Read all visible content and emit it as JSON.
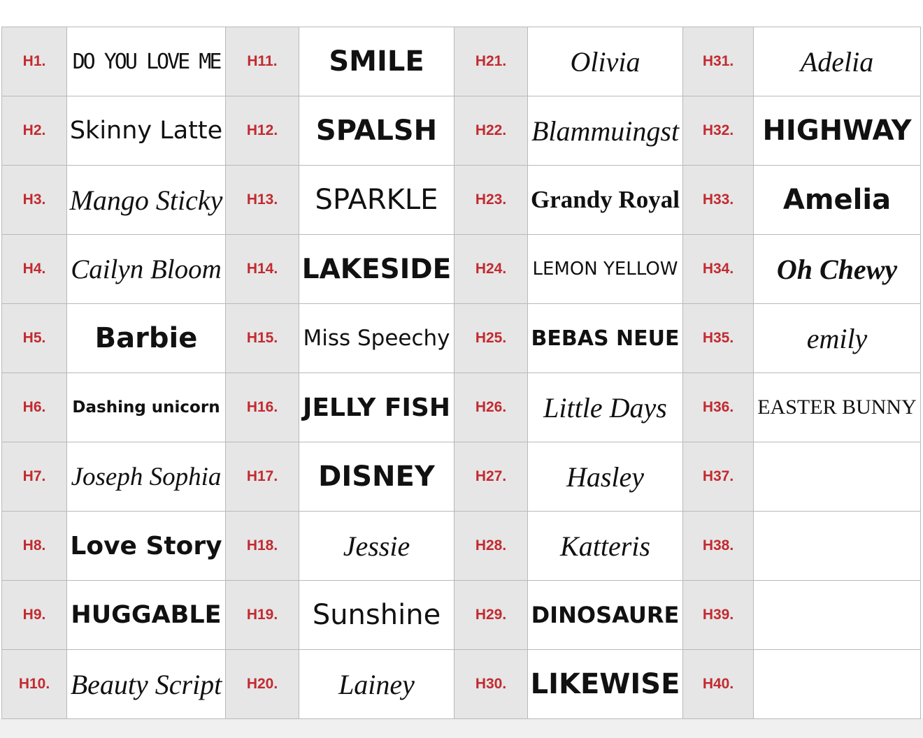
{
  "table": {
    "groups": [
      {
        "items": [
          {
            "code": "H1.",
            "sample": "DO YOU LOVE ME"
          },
          {
            "code": "H2.",
            "sample": "Skinny Latte"
          },
          {
            "code": "H3.",
            "sample": "Mango Sticky"
          },
          {
            "code": "H4.",
            "sample": "Cailyn Bloom"
          },
          {
            "code": "H5.",
            "sample": "Barbie"
          },
          {
            "code": "H6.",
            "sample": "Dashing unicorn"
          },
          {
            "code": "H7.",
            "sample": "Joseph Sophia"
          },
          {
            "code": "H8.",
            "sample": "Love Story"
          },
          {
            "code": "H9.",
            "sample": "HUGGABLE"
          },
          {
            "code": "H10.",
            "sample": "Beauty Script"
          }
        ]
      },
      {
        "items": [
          {
            "code": "H11.",
            "sample": "SMILE"
          },
          {
            "code": "H12.",
            "sample": "SPALSH"
          },
          {
            "code": "H13.",
            "sample": "SPARKLE"
          },
          {
            "code": "H14.",
            "sample": "LAKESIDE"
          },
          {
            "code": "H15.",
            "sample": "Miss Speechy"
          },
          {
            "code": "H16.",
            "sample": "JELLY FISH"
          },
          {
            "code": "H17.",
            "sample": "DISNEY"
          },
          {
            "code": "H18.",
            "sample": "Jessie"
          },
          {
            "code": "H19.",
            "sample": "Sunshine"
          },
          {
            "code": "H20.",
            "sample": "Lainey"
          }
        ]
      },
      {
        "items": [
          {
            "code": "H21.",
            "sample": "Olivia"
          },
          {
            "code": "H22.",
            "sample": "Blammuingst"
          },
          {
            "code": "H23.",
            "sample": "Grandy Royal"
          },
          {
            "code": "H24.",
            "sample": "LEMON YELLOW"
          },
          {
            "code": "H25.",
            "sample": "BEBAS NEUE"
          },
          {
            "code": "H26.",
            "sample": "Little Days"
          },
          {
            "code": "H27.",
            "sample": "Hasley"
          },
          {
            "code": "H28.",
            "sample": "Katteris"
          },
          {
            "code": "H29.",
            "sample": "DINOSAURE"
          },
          {
            "code": "H30.",
            "sample": "LIKEWISE"
          }
        ]
      },
      {
        "items": [
          {
            "code": "H31.",
            "sample": "Adelia"
          },
          {
            "code": "H32.",
            "sample": "HIGHWAY"
          },
          {
            "code": "H33.",
            "sample": "Amelia"
          },
          {
            "code": "H34.",
            "sample": "Oh Chewy"
          },
          {
            "code": "H35.",
            "sample": "emily"
          },
          {
            "code": "H36.",
            "sample": "EASTER BUNNY"
          },
          {
            "code": "H37."
          },
          {
            "code": "H38."
          },
          {
            "code": "H39."
          },
          {
            "code": "H40."
          }
        ]
      }
    ]
  }
}
